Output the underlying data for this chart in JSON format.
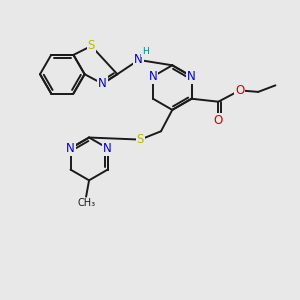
{
  "bg_color": "#e8e8e8",
  "bond_color": "#1a1a1a",
  "bond_width": 1.4,
  "atom_colors": {
    "N": "#0000dd",
    "S": "#bbbb00",
    "O": "#dd0000",
    "H": "#008888",
    "C": "#1a1a1a"
  },
  "font_size": 8.5
}
